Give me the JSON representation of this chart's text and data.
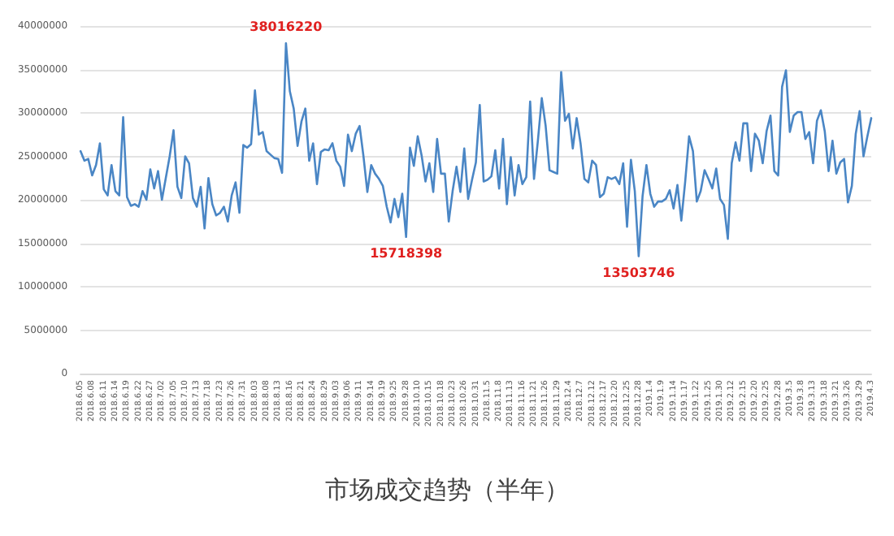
{
  "chart_data": {
    "type": "line",
    "title": "市场成交趋势（半年）",
    "categories": [
      "2018.6.05",
      null,
      null,
      "2018.6.08",
      null,
      null,
      "2018.6.11",
      null,
      null,
      "2018.6.14",
      null,
      null,
      "2018.6.19",
      null,
      null,
      "2018.6.22",
      null,
      null,
      "2018.6.27",
      null,
      null,
      "2018.7.02",
      null,
      null,
      "2018.7.05",
      null,
      null,
      "2018.7.10",
      null,
      null,
      "2018.7.13",
      null,
      null,
      "2018.7.18",
      null,
      null,
      "2018.7.23",
      null,
      null,
      "2018.7.26",
      null,
      null,
      "2018.7.31",
      null,
      null,
      "2018.8.03",
      null,
      null,
      "2018.8.08",
      null,
      null,
      "2018.8.13",
      null,
      null,
      "2018.8.16",
      null,
      null,
      "2018.8.21",
      null,
      null,
      "2018.8.24",
      null,
      null,
      "2018.8.29",
      null,
      null,
      "2018.9.03",
      null,
      null,
      "2018.9.06",
      null,
      null,
      "2018.9.11",
      null,
      null,
      "2018.9.14",
      null,
      null,
      "2018.9.19",
      null,
      null,
      "2018.9.25",
      null,
      null,
      "2018.9.28",
      null,
      null,
      "2018.10.10",
      null,
      null,
      "2018.10.15",
      null,
      null,
      "2018.10.18",
      null,
      null,
      "2018.10.23",
      null,
      null,
      "2018.10.26",
      null,
      null,
      "2018.10.31",
      null,
      null,
      "2018.11.5",
      null,
      null,
      "2018.11.8",
      null,
      null,
      "2018.11.13",
      null,
      null,
      "2018.11.16",
      null,
      null,
      "2018.11.21",
      null,
      null,
      "2018.11.26",
      null,
      null,
      "2018.11.29",
      null,
      null,
      "2018.12.4",
      null,
      null,
      "2018.12.7",
      null,
      null,
      "2018.12.12",
      null,
      null,
      "2018.12.17",
      null,
      null,
      "2018.12.20",
      null,
      null,
      "2018.12.25",
      null,
      null,
      "2018.12.28",
      null,
      null,
      "2019.1.4",
      null,
      null,
      "2019.1.9",
      null,
      null,
      "2019.1.14",
      null,
      null,
      "2019.1.17",
      null,
      null,
      "2019.1.22",
      null,
      null,
      "2019.1.25",
      null,
      null,
      "2019.1.30",
      null,
      null,
      "2019.2.12",
      null,
      null,
      "2019.2.15",
      null,
      null,
      "2019.2.20",
      null,
      null,
      "2019.2.25",
      null,
      null,
      "2019.2.28",
      null,
      null,
      "2019.3.5",
      null,
      null,
      "2019.3.8",
      null,
      null,
      "2019.3.13",
      null,
      null,
      "2019.3.18",
      null,
      null,
      "2019.3.21",
      null,
      null,
      "2019.3.26",
      null,
      null,
      "2019.3.29",
      null,
      null,
      "2019.4.3"
    ],
    "series": [
      {
        "color": "#4a86c5",
        "values": [
          25600000,
          24500000,
          24700000,
          22800000,
          24000000,
          26500000,
          21200000,
          20500000,
          24000000,
          21000000,
          20500000,
          29500000,
          20300000,
          19300000,
          19500000,
          19200000,
          21000000,
          20000000,
          23500000,
          21300000,
          23300000,
          20000000,
          22500000,
          25000000,
          28000000,
          21500000,
          20200000,
          25000000,
          24200000,
          20200000,
          19200000,
          21500000,
          16700000,
          22500000,
          19500000,
          18200000,
          18500000,
          19200000,
          17500000,
          20500000,
          22000000,
          18500000,
          26300000,
          26000000,
          26400000,
          32600000,
          27500000,
          27800000,
          25600000,
          25200000,
          24800000,
          24700000,
          23100000,
          38016220,
          32500000,
          30500000,
          26200000,
          29000000,
          30500000,
          24500000,
          26500000,
          21800000,
          25500000,
          25800000,
          25700000,
          26500000,
          24500000,
          23800000,
          21600000,
          27500000,
          25600000,
          27600000,
          28500000,
          25000000,
          20900000,
          24000000,
          23000000,
          22400000,
          21600000,
          19200000,
          17400000,
          20100000,
          18000000,
          20700000,
          15718398,
          26000000,
          23900000,
          27300000,
          25100000,
          22100000,
          24200000,
          20900000,
          27000000,
          23000000,
          23000000,
          17500000,
          21000000,
          23800000,
          20900000,
          25900000,
          20100000,
          22300000,
          24300000,
          30900000,
          22100000,
          22300000,
          22700000,
          25700000,
          21300000,
          27000000,
          19500000,
          24900000,
          20500000,
          24000000,
          21800000,
          22600000,
          31300000,
          22400000,
          26800000,
          31700000,
          28500000,
          23400000,
          23200000,
          23000000,
          34700000,
          29100000,
          29900000,
          25900000,
          29400000,
          26500000,
          22400000,
          22000000,
          24500000,
          24000000,
          20300000,
          20700000,
          22600000,
          22400000,
          22600000,
          21800000,
          24200000,
          16900000,
          24600000,
          21000000,
          13503746,
          20400000,
          24000000,
          20700000,
          19200000,
          19800000,
          19800000,
          20100000,
          21100000,
          19000000,
          21700000,
          17600000,
          22100000,
          27300000,
          25600000,
          19800000,
          21000000,
          23400000,
          22400000,
          21300000,
          23600000,
          20100000,
          19400000,
          15500000,
          24200000,
          26600000,
          24500000,
          28800000,
          28800000,
          23300000,
          27600000,
          26800000,
          24200000,
          27900000,
          29700000,
          23300000,
          22800000,
          33000000,
          34900000,
          27800000,
          29700000,
          30100000,
          30100000,
          27000000,
          27800000,
          24200000,
          29100000,
          30300000,
          27900000,
          23300000,
          26800000,
          23000000,
          24300000,
          24700000,
          19700000,
          21600000,
          27600000,
          30200000,
          25000000,
          27300000,
          29400000
        ],
        "value_labels": [
          null,
          null,
          null,
          null,
          null,
          null,
          null,
          null,
          null,
          null,
          null,
          null,
          null,
          null,
          null,
          null,
          null,
          null,
          null,
          null,
          null,
          null,
          null,
          null,
          null,
          null,
          null,
          null,
          null,
          null,
          null,
          null,
          null,
          null,
          null,
          null,
          null,
          null,
          null,
          null,
          null,
          null,
          null,
          null,
          null,
          null,
          null,
          null,
          null,
          null,
          null,
          null,
          null,
          "38016220",
          null,
          null,
          null,
          null,
          null,
          null,
          null,
          null,
          null,
          null,
          null,
          null,
          null,
          null,
          null,
          null,
          null,
          null,
          null,
          null,
          null,
          null,
          null,
          null,
          null,
          null,
          null,
          null,
          null,
          null,
          "15718398",
          null,
          null,
          null,
          null,
          null,
          null,
          null,
          null,
          null,
          null,
          null,
          null,
          null,
          null,
          null,
          null,
          null,
          null,
          null,
          null,
          null,
          null,
          null,
          null,
          null,
          null,
          null,
          null,
          null,
          null,
          null,
          null,
          null,
          null,
          null,
          null,
          null,
          null,
          null,
          null,
          null,
          null,
          null,
          null,
          null,
          null,
          null,
          null,
          null,
          null,
          null,
          null,
          null,
          null,
          null,
          null,
          null,
          null,
          null,
          "13503746",
          null,
          null,
          null,
          null,
          null,
          null,
          null,
          null,
          null,
          null,
          null,
          null,
          null,
          null,
          null,
          null,
          null,
          null,
          null,
          null,
          null,
          null,
          null,
          null,
          null,
          null,
          null,
          null,
          null,
          null,
          null,
          null,
          null,
          null,
          null,
          null,
          null,
          null,
          null,
          null,
          null,
          null,
          null,
          null,
          null,
          null,
          null,
          null,
          null,
          null,
          null,
          null,
          null,
          null,
          null,
          null,
          null,
          null,
          null,
          null
        ]
      }
    ],
    "ylim": [
      0,
      40000000
    ],
    "yticks": [
      0,
      5000000,
      10000000,
      15000000,
      20000000,
      25000000,
      30000000,
      35000000,
      40000000
    ],
    "grid": "y",
    "line_style": "solid"
  }
}
